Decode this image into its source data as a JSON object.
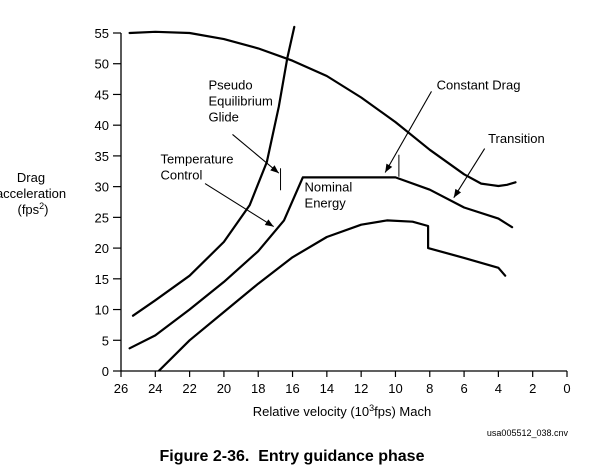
{
  "chart_data": {
    "type": "line",
    "caption": "Figure 2-36.  Entry guidance phase",
    "file_id": "usa005512_038.cnv",
    "xlabel": "Relative velocity (10³fps) Mach",
    "xlabel_parts": {
      "pre": "Relative velocity (10",
      "sup": "3",
      "post": "fps) Mach"
    },
    "ylabel_lines": [
      "Drag",
      "acceleration"
    ],
    "ylabel_unit": {
      "pre": "(fps",
      "sup": "2",
      "post": ")"
    },
    "x_ticks": [
      26,
      24,
      22,
      20,
      18,
      16,
      14,
      12,
      10,
      8,
      6,
      4,
      2,
      0
    ],
    "y_ticks": [
      0,
      5,
      10,
      15,
      20,
      25,
      30,
      35,
      40,
      45,
      50,
      55
    ],
    "xlim": [
      26,
      0
    ],
    "ylim": [
      0,
      55
    ],
    "series": [
      {
        "points": [
          [
            25.3,
            9
          ],
          [
            24,
            11.5
          ],
          [
            22,
            15.5
          ],
          [
            20,
            21
          ],
          [
            18.5,
            27
          ],
          [
            17.5,
            34
          ],
          [
            16.8,
            43
          ],
          [
            16.3,
            51
          ],
          [
            15.9,
            56
          ]
        ]
      },
      {
        "points": [
          [
            25.5,
            55
          ],
          [
            24,
            55.2
          ],
          [
            22,
            55
          ],
          [
            20,
            54
          ],
          [
            18,
            52.5
          ],
          [
            16,
            50.5
          ],
          [
            14,
            48
          ],
          [
            12,
            44.5
          ],
          [
            10,
            40.5
          ],
          [
            8,
            36
          ],
          [
            6,
            32
          ],
          [
            5,
            30.5
          ],
          [
            4.5,
            30.3
          ],
          [
            4,
            30.1
          ],
          [
            3.5,
            30.3
          ],
          [
            3,
            30.7
          ]
        ]
      },
      {
        "points": [
          [
            25.5,
            3.7
          ],
          [
            24,
            5.8
          ],
          [
            22,
            10
          ],
          [
            20,
            14.5
          ],
          [
            18,
            19.5
          ],
          [
            16.5,
            24.5
          ],
          [
            15.4,
            31.5
          ],
          [
            10,
            31.5
          ],
          [
            8,
            29.5
          ],
          [
            6,
            26.6
          ],
          [
            4,
            24.8
          ],
          [
            3.2,
            23.4
          ]
        ]
      },
      {
        "points": [
          [
            23.8,
            0
          ],
          [
            22,
            5
          ],
          [
            20,
            9.6
          ],
          [
            18,
            14.2
          ],
          [
            16,
            18.5
          ],
          [
            14,
            21.8
          ],
          [
            12,
            23.8
          ],
          [
            10.5,
            24.5
          ],
          [
            9,
            24.3
          ],
          [
            8.1,
            23.6
          ],
          [
            8.1,
            20
          ],
          [
            6,
            18.4
          ],
          [
            4,
            16.8
          ],
          [
            3.6,
            15.5
          ]
        ]
      }
    ],
    "tick_marks": [
      {
        "x": 16.7,
        "y": 31.2
      },
      {
        "x": 9.8,
        "y": 33.4
      }
    ],
    "annotations": [
      {
        "lines": [
          "Pseudo",
          "Equilibrium",
          "Glide"
        ],
        "text_at": [
          20.9,
          45.8
        ],
        "arrow_from": [
          19.5,
          38.5
        ],
        "arrow_to": [
          16.8,
          32.2
        ]
      },
      {
        "lines": [
          "Temperature",
          "Control"
        ],
        "text_at": [
          23.7,
          33.8
        ],
        "arrow_from": [
          21.1,
          30.5
        ],
        "arrow_to": [
          17.1,
          23.5
        ]
      },
      {
        "lines": [
          "Nominal",
          "Energy"
        ],
        "text_at": [
          15.3,
          29.2
        ]
      },
      {
        "lines": [
          "Constant Drag"
        ],
        "text_at": [
          7.6,
          45.8
        ],
        "arrow_from": [
          7.9,
          45.5
        ],
        "arrow_to": [
          10.6,
          32.3
        ]
      },
      {
        "lines": [
          "Transition"
        ],
        "text_at": [
          4.6,
          37.1
        ],
        "arrow_from": [
          4.8,
          36.2
        ],
        "arrow_to": [
          6.6,
          28.2
        ]
      }
    ]
  }
}
